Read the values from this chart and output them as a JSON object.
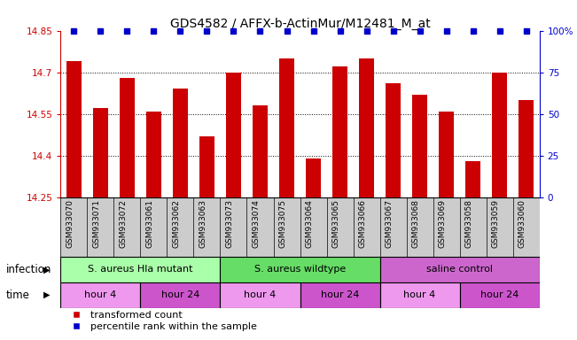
{
  "title": "GDS4582 / AFFX-b-ActinMur/M12481_M_at",
  "samples": [
    "GSM933070",
    "GSM933071",
    "GSM933072",
    "GSM933061",
    "GSM933062",
    "GSM933063",
    "GSM933073",
    "GSM933074",
    "GSM933075",
    "GSM933064",
    "GSM933065",
    "GSM933066",
    "GSM933067",
    "GSM933068",
    "GSM933069",
    "GSM933058",
    "GSM933059",
    "GSM933060"
  ],
  "bar_values": [
    14.74,
    14.57,
    14.68,
    14.56,
    14.64,
    14.47,
    14.7,
    14.58,
    14.75,
    14.39,
    14.72,
    14.75,
    14.66,
    14.62,
    14.56,
    14.38,
    14.7,
    14.6
  ],
  "percentile_values": [
    100,
    100,
    100,
    100,
    100,
    100,
    100,
    100,
    100,
    100,
    100,
    100,
    100,
    100,
    100,
    100,
    100,
    100
  ],
  "bar_color": "#cc0000",
  "percentile_color": "#0000cc",
  "ylim_left": [
    14.25,
    14.85
  ],
  "ylim_right": [
    0,
    100
  ],
  "yticks_left": [
    14.25,
    14.4,
    14.55,
    14.7,
    14.85
  ],
  "yticks_right": [
    0,
    25,
    50,
    75,
    100
  ],
  "grid_lines": [
    14.4,
    14.55,
    14.7
  ],
  "infection_groups": [
    {
      "label": "S. aureus Hla mutant",
      "start": 0,
      "end": 6,
      "color": "#aaffaa"
    },
    {
      "label": "S. aureus wildtype",
      "start": 6,
      "end": 12,
      "color": "#66dd66"
    },
    {
      "label": "saline control",
      "start": 12,
      "end": 18,
      "color": "#cc66cc"
    }
  ],
  "time_groups": [
    {
      "label": "hour 4",
      "start": 0,
      "end": 3,
      "color": "#ee99ee"
    },
    {
      "label": "hour 24",
      "start": 3,
      "end": 6,
      "color": "#cc55cc"
    },
    {
      "label": "hour 4",
      "start": 6,
      "end": 9,
      "color": "#ee99ee"
    },
    {
      "label": "hour 24",
      "start": 9,
      "end": 12,
      "color": "#cc55cc"
    },
    {
      "label": "hour 4",
      "start": 12,
      "end": 15,
      "color": "#ee99ee"
    },
    {
      "label": "hour 24",
      "start": 15,
      "end": 18,
      "color": "#cc55cc"
    }
  ],
  "infection_label": "infection",
  "time_label": "time",
  "legend_bar_label": "transformed count",
  "legend_percentile_label": "percentile rank within the sample",
  "bar_width": 0.55,
  "title_fontsize": 10,
  "tick_fontsize": 7.5,
  "label_fontsize": 8.5,
  "annotation_fontsize": 8,
  "sample_fontsize": 6.5,
  "xtick_bg_color": "#cccccc"
}
